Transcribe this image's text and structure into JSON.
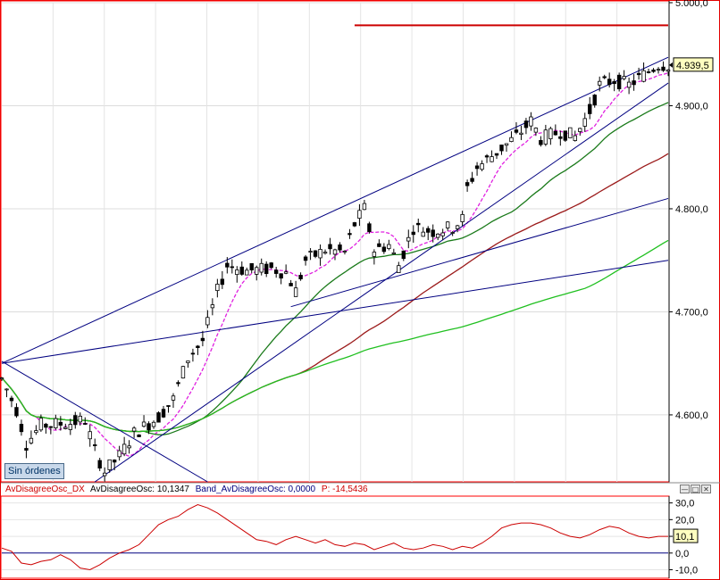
{
  "chart_data": [
    {
      "type": "candlestick",
      "title": "",
      "y_axis_side": "right",
      "ylim": [
        4535,
        5000
      ],
      "x_range_bars": [
        0,
        136
      ],
      "y_ticks": [
        4600,
        4700,
        4800,
        4900,
        5000
      ],
      "y_tick_labels": [
        "4.600,0",
        "4.700,0",
        "4.800,0",
        "4.900,0",
        "5.000,0"
      ],
      "last_value": 4939.5,
      "last_value_label": "4.939,5",
      "ohlc": [],
      "overlays": [
        {
          "name": "ma_short",
          "color": "#e020e0",
          "style": "dashed"
        },
        {
          "name": "ma_medium",
          "color": "#1a7a1a",
          "style": "solid"
        },
        {
          "name": "ma_long",
          "color": "#9b1a1a",
          "style": "solid"
        },
        {
          "name": "ma_very_long",
          "color": "#20c020",
          "style": "solid"
        }
      ],
      "trendlines": [
        {
          "from": [
            0,
            4650
          ],
          "to": [
            136,
            4947
          ],
          "color": "#000080"
        },
        {
          "from": [
            0,
            4650
          ],
          "to": [
            136,
            4750
          ],
          "color": "#000080"
        },
        {
          "from": [
            19,
            4535
          ],
          "to": [
            136,
            4922
          ],
          "color": "#000080"
        },
        {
          "from": [
            59,
            4705
          ],
          "to": [
            136,
            4810
          ],
          "color": "#000080"
        },
        {
          "from": [
            0,
            4652
          ],
          "to": [
            42,
            4535
          ],
          "color": "#000080"
        }
      ],
      "hlines": [
        {
          "y": 4978,
          "x_from": 72,
          "x_to": 136,
          "color": "#cc0000"
        }
      ],
      "indicators": [
        {
          "label": "Sin órdenes"
        }
      ]
    },
    {
      "type": "line",
      "ylim": [
        -14,
        33
      ],
      "y_ticks": [
        -10,
        0,
        10,
        20,
        30
      ],
      "y_tick_labels": [
        "-10,0",
        "0,0",
        "10,0",
        "20,0",
        "30,0"
      ],
      "series_labels": [
        "AvDisagreeOsc_DX",
        "AvDisagreeOsc: 10,1347",
        "Band_AvDisagreeOsc: 0,0000",
        "P: -14,5436"
      ],
      "series_colors": [
        "#cc0000",
        "#000000",
        "#000080",
        "#cc0000"
      ],
      "last_value_label": "10,1",
      "x": [
        0,
        2,
        4,
        6,
        8,
        10,
        12,
        14,
        16,
        18,
        20,
        22,
        24,
        26,
        28,
        30,
        32,
        34,
        36,
        38,
        40,
        42,
        44,
        46,
        48,
        50,
        52,
        54,
        56,
        58,
        60,
        62,
        64,
        66,
        68,
        70,
        72,
        74,
        76,
        78,
        80,
        82,
        84,
        86,
        88,
        90,
        92,
        94,
        96,
        98,
        100,
        102,
        104,
        106,
        108,
        110,
        112,
        114,
        116,
        118,
        120,
        122,
        124,
        126,
        128,
        130,
        132,
        134,
        136
      ],
      "values": [
        3,
        1,
        -6,
        -7,
        -5,
        -4,
        -1,
        -4,
        -9,
        -10,
        -7,
        -3,
        0,
        2,
        5,
        11,
        17,
        20,
        22,
        26,
        29,
        27,
        24,
        20,
        16,
        12,
        8,
        7,
        5,
        8,
        10,
        8,
        6,
        8,
        5,
        4,
        6,
        5,
        2,
        4,
        6,
        3,
        2,
        3,
        5,
        4,
        2,
        4,
        3,
        6,
        10,
        15,
        17,
        18,
        18,
        17,
        15,
        12,
        10,
        9,
        11,
        14,
        16,
        15,
        12,
        10,
        9,
        10,
        10
      ]
    }
  ]
}
